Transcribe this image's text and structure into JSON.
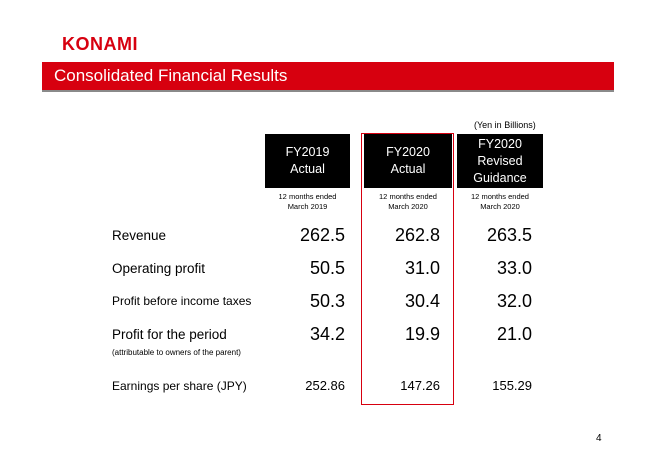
{
  "header": {
    "logo": "KONAMI",
    "title": "Consolidated Financial Results"
  },
  "table": {
    "unit": "(Yen in Billions)",
    "columns": [
      {
        "title": [
          "FY2019",
          "Actual"
        ],
        "period": [
          "12 months ended",
          "March 2019"
        ]
      },
      {
        "title": [
          "FY2020",
          "Actual"
        ],
        "period": [
          "12 months ended",
          "March 2020"
        ]
      },
      {
        "title": [
          "FY2020",
          "Revised",
          "Guidance"
        ],
        "period": [
          "12 months ended",
          "March 2020"
        ]
      }
    ],
    "rows": [
      {
        "label": "Revenue",
        "values": [
          "262.5",
          "262.8",
          "263.5"
        ]
      },
      {
        "label": "Operating profit",
        "values": [
          "50.5",
          "31.0",
          "33.0"
        ]
      },
      {
        "label": "Profit before income taxes",
        "values": [
          "50.3",
          "30.4",
          "32.0"
        ]
      },
      {
        "label": "Profit for the period",
        "note": "(attributable to owners of the parent)",
        "values": [
          "34.2",
          "19.9",
          "21.0"
        ]
      },
      {
        "label": "Earnings per share (JPY)",
        "values": [
          "252.86",
          "147.26",
          "155.29"
        ]
      }
    ]
  },
  "page_number": "4"
}
